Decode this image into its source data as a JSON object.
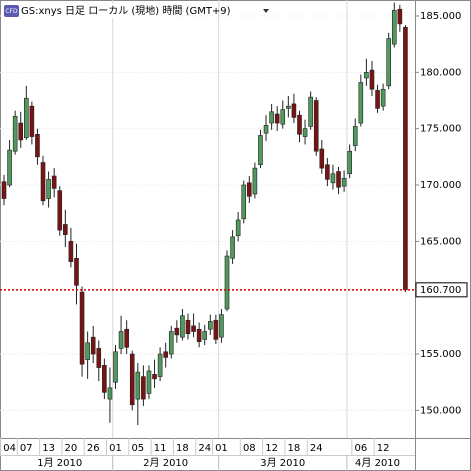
{
  "chart_data": {
    "type": "candlestick",
    "title": "GS:xnys 日足 ローカル (現地) 時間 (GMT+9)",
    "icon": "CFD",
    "categories": [
      null,
      "04",
      null,
      null,
      "07",
      null,
      null,
      null,
      "13",
      null,
      null,
      null,
      "20",
      null,
      null,
      null,
      "26",
      null,
      null,
      null,
      "01",
      null,
      null,
      null,
      "05",
      null,
      null,
      null,
      "11",
      null,
      null,
      null,
      "18",
      null,
      null,
      null,
      "24",
      null,
      null,
      "01",
      null,
      null,
      null,
      null,
      "08",
      null,
      null,
      null,
      "12",
      null,
      null,
      null,
      "18",
      null,
      null,
      null,
      "24",
      null,
      null,
      null,
      null,
      null,
      null,
      null,
      "06",
      null,
      null,
      null,
      "12",
      null,
      null,
      null,
      null
    ],
    "months": [
      "1月 2010",
      "2月 2010",
      "3月 2010",
      "4月 2010"
    ],
    "open": [
      170.3,
      170.0,
      173.0,
      175.5,
      174.2,
      177.0,
      174.5,
      172.0,
      168.8,
      170.8,
      169.5,
      166.5,
      165.0,
      163.5,
      160.5,
      154.5,
      156.5,
      155.5,
      154.0,
      151.0,
      152.5,
      155.5,
      157.2,
      155.0,
      151.0,
      153.0,
      151.5,
      153.2,
      153.0,
      155.2,
      155.0,
      157.3,
      156.5,
      158.0,
      157.5,
      157.2,
      156.3,
      157.2,
      158.0,
      156.5,
      159.0,
      163.5,
      165.5,
      167.0,
      170.2,
      169.2,
      171.8,
      174.6,
      175.5,
      176.3,
      175.4,
      176.8,
      177.2,
      176.2,
      174.3,
      175.2,
      177.5,
      173.2,
      171.8,
      170.2,
      171.2,
      169.9,
      171.0,
      173.5,
      175.5,
      179.5,
      180.2,
      178.4,
      177.0,
      178.8,
      182.5,
      185.6,
      184.0
    ],
    "high": [
      170.9,
      174.0,
      176.6,
      176.5,
      178.8,
      177.4,
      175.0,
      172.6,
      171.2,
      171.5,
      169.9,
      167.8,
      166.2,
      164.8,
      161.0,
      157.0,
      157.5,
      156.2,
      154.6,
      153.8,
      155.8,
      158.4,
      158.0,
      155.3,
      154.2,
      154.0,
      154.0,
      154.5,
      155.6,
      156.0,
      157.5,
      158.0,
      159.0,
      158.6,
      158.6,
      157.8,
      157.6,
      158.5,
      158.5,
      159.0,
      164.2,
      166.0,
      167.6,
      170.4,
      170.8,
      172.0,
      174.9,
      176.2,
      177.2,
      177.0,
      177.5,
      177.9,
      178.1,
      176.6,
      175.8,
      178.3,
      177.8,
      174.0,
      172.4,
      171.8,
      171.6,
      171.3,
      173.6,
      175.9,
      179.8,
      181.2,
      181.0,
      178.9,
      179.0,
      183.5,
      186.2,
      186.0,
      184.2
    ],
    "low": [
      168.2,
      169.8,
      172.7,
      173.3,
      174.0,
      173.6,
      171.8,
      168.2,
      168.0,
      168.9,
      165.5,
      164.5,
      162.7,
      159.4,
      153.0,
      152.8,
      154.2,
      152.6,
      151.0,
      148.9,
      151.9,
      155.0,
      155.0,
      150.0,
      148.7,
      150.4,
      151.0,
      152.0,
      152.6,
      153.8,
      154.6,
      156.0,
      156.2,
      156.3,
      156.5,
      155.6,
      155.8,
      156.7,
      155.9,
      156.0,
      158.8,
      163.0,
      165.0,
      166.6,
      168.4,
      168.8,
      171.5,
      173.9,
      174.9,
      174.8,
      175.0,
      176.0,
      175.5,
      173.8,
      173.6,
      174.9,
      172.6,
      171.0,
      169.9,
      169.6,
      169.2,
      169.4,
      170.6,
      173.0,
      175.2,
      178.8,
      177.9,
      176.4,
      176.6,
      178.5,
      182.2,
      183.6,
      160.5
    ],
    "close": [
      168.8,
      173.1,
      176.1,
      174.0,
      177.7,
      174.3,
      172.5,
      168.6,
      170.5,
      169.7,
      166.0,
      165.6,
      163.2,
      161.1,
      154.1,
      156.0,
      155.0,
      153.8,
      151.6,
      152.0,
      155.2,
      157.0,
      155.6,
      150.5,
      153.4,
      151.0,
      153.5,
      152.8,
      155.0,
      154.7,
      157.0,
      156.7,
      158.4,
      156.8,
      157.0,
      156.1,
      157.0,
      157.9,
      156.3,
      158.5,
      163.7,
      165.4,
      166.9,
      170.0,
      169.0,
      171.5,
      174.4,
      175.3,
      176.5,
      175.5,
      176.7,
      177.0,
      176.0,
      174.5,
      175.0,
      177.8,
      173.0,
      171.5,
      170.5,
      171.0,
      169.8,
      170.6,
      173.0,
      175.2,
      179.1,
      180.0,
      178.5,
      176.8,
      178.5,
      183.0,
      185.5,
      184.3,
      160.7
    ],
    "up_color": "#4f9a5c",
    "down_color": "#7a1414",
    "last_price": {
      "value": 160.7,
      "label": "160.700"
    },
    "last_price_color": "#d00000",
    "ylim": [
      147.55,
      186.42
    ],
    "yticks": [
      {
        "value": 150,
        "label": "150.000"
      },
      {
        "value": 155,
        "label": "155.000"
      },
      {
        "value": 165,
        "label": "165.000"
      },
      {
        "value": 170,
        "label": "170.000"
      },
      {
        "value": 175,
        "label": "175.000"
      },
      {
        "value": 180,
        "label": "180.000"
      },
      {
        "value": 185,
        "label": "185.000"
      }
    ],
    "grid": true
  }
}
